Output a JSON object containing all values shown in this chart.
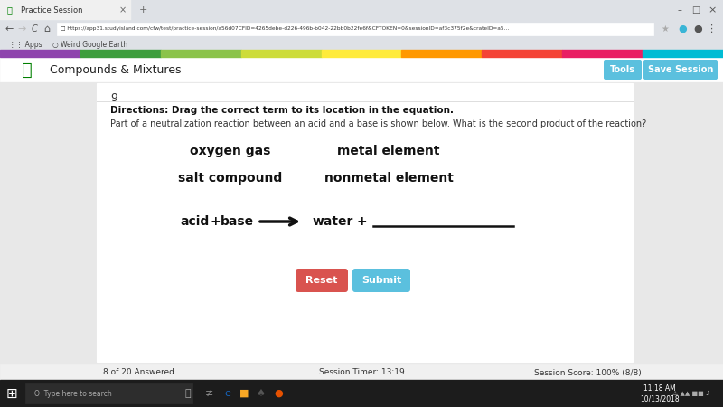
{
  "title_bar": "Practice Session",
  "url": "https://app31.studyisland.com/cfw/test/practice-session/a56d07CFID=4265debe-d226-496b-b042-22bb0b22fe6f&CFTOKEN=0&sessionID=af3c375f2e&crateID=a5...",
  "subject": "Compounds & Mixtures",
  "question_number": "9",
  "directions": "Directions: Drag the correct term to its location in the equation.",
  "body_text": "Part of a neutralization reaction between an acid and a base is shown below. What is the second product of the reaction?",
  "options": [
    "oxygen gas",
    "metal element",
    "salt compound",
    "nonmetal element"
  ],
  "reset_label": "Reset",
  "submit_label": "Submit",
  "tools_label": "Tools",
  "save_session_label": "Save Session",
  "status_left": "8 of 20 Answered",
  "status_mid": "Session Timer: 13:19",
  "status_right": "Session Score: 100% (8/8)",
  "time": "11:18 AM",
  "date": "10/13/2018",
  "rainbow_colors": [
    "#9b59b6",
    "#3b9e3b",
    "#8bc34a",
    "#cddc39",
    "#ffeb3b",
    "#ff9800",
    "#f44336",
    "#e91e63",
    "#00bcd4"
  ],
  "bg_color": "#e8e8e8",
  "content_bg": "#ffffff",
  "toolbar_bg": "#ffffff",
  "browser_top_bg": "#dee1e6",
  "reset_color": "#d9534f",
  "submit_color": "#5bc0de",
  "taskbar_bg": "#1c1c1c",
  "status_bar_bg": "#f0f0f0",
  "tab_active_bg": "#f0f0f0"
}
